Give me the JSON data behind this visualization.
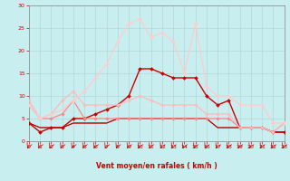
{
  "background_color": "#c8eef0",
  "grid_color": "#b0d0d0",
  "xlabel": "Vent moyen/en rafales ( km/h )",
  "xlim": [
    0,
    23
  ],
  "ylim": [
    0,
    30
  ],
  "xticks": [
    0,
    1,
    2,
    3,
    4,
    5,
    6,
    7,
    8,
    9,
    10,
    11,
    12,
    13,
    14,
    15,
    16,
    17,
    18,
    19,
    20,
    21,
    22,
    23
  ],
  "yticks": [
    0,
    5,
    10,
    15,
    20,
    25,
    30
  ],
  "series": [
    {
      "x": [
        0,
        1,
        2,
        3,
        4,
        5,
        6,
        7,
        8,
        9,
        10,
        11,
        12,
        13,
        14,
        15,
        16,
        17,
        18,
        19,
        20,
        21,
        22,
        23
      ],
      "y": [
        4,
        2,
        3,
        3,
        5,
        5,
        6,
        7,
        8,
        10,
        16,
        16,
        15,
        14,
        14,
        14,
        10,
        8,
        9,
        3,
        3,
        3,
        2,
        2
      ],
      "color": "#cc0000",
      "linewidth": 1.0,
      "marker": "D",
      "markersize": 2.0
    },
    {
      "x": [
        0,
        1,
        2,
        3,
        4,
        5,
        6,
        7,
        8,
        9,
        10,
        11,
        12,
        13,
        14,
        15,
        16,
        17,
        18,
        19,
        20,
        21,
        22,
        23
      ],
      "y": [
        8,
        5,
        5,
        6,
        9,
        5,
        5,
        5,
        5,
        5,
        5,
        5,
        5,
        5,
        5,
        5,
        5,
        5,
        5,
        3,
        3,
        3,
        2,
        4
      ],
      "color": "#ff8888",
      "linewidth": 0.9,
      "marker": "D",
      "markersize": 1.8
    },
    {
      "x": [
        0,
        1,
        2,
        3,
        4,
        5,
        6,
        7,
        8,
        9,
        10,
        11,
        12,
        13,
        14,
        15,
        16,
        17,
        18,
        19,
        20,
        21,
        22,
        23
      ],
      "y": [
        9,
        5,
        6,
        9,
        11,
        8,
        8,
        8,
        8,
        9,
        10,
        9,
        8,
        8,
        8,
        8,
        6,
        6,
        6,
        3,
        3,
        3,
        2,
        4
      ],
      "color": "#ffbbbb",
      "linewidth": 0.9,
      "marker": "D",
      "markersize": 1.8
    },
    {
      "x": [
        0,
        1,
        2,
        3,
        4,
        5,
        6,
        7,
        8,
        9,
        10,
        11,
        12,
        13,
        14,
        15,
        16,
        17,
        18,
        19,
        20,
        21,
        22,
        23
      ],
      "y": [
        4,
        3,
        3,
        3,
        4,
        4,
        4,
        4,
        5,
        5,
        5,
        5,
        5,
        5,
        5,
        5,
        5,
        3,
        3,
        3,
        3,
        3,
        2,
        2
      ],
      "color": "#dd3333",
      "linewidth": 0.8,
      "marker": null,
      "markersize": 0
    },
    {
      "x": [
        0,
        1,
        2,
        3,
        4,
        5,
        6,
        7,
        8,
        9,
        10,
        11,
        12,
        13,
        14,
        15,
        16,
        17,
        18,
        19,
        20,
        21,
        22,
        23
      ],
      "y": [
        4,
        3,
        3,
        3,
        4,
        4,
        4,
        4,
        5,
        5,
        5,
        5,
        5,
        5,
        5,
        5,
        5,
        3,
        3,
        3,
        3,
        3,
        2,
        2
      ],
      "color": "#aa0000",
      "linewidth": 0.7,
      "marker": null,
      "markersize": 0
    },
    {
      "x": [
        0,
        1,
        2,
        3,
        4,
        5,
        6,
        7,
        8,
        9,
        10,
        11,
        12,
        13,
        14,
        15,
        16,
        17,
        18,
        19,
        20,
        21,
        22,
        23
      ],
      "y": [
        8,
        5,
        6,
        7,
        9,
        11,
        14,
        17,
        22,
        26,
        27,
        23,
        24,
        22,
        15,
        26,
        12,
        10,
        10,
        8,
        8,
        8,
        4,
        4
      ],
      "color": "#ffcccc",
      "linewidth": 0.9,
      "marker": "D",
      "markersize": 2.0
    }
  ],
  "axis_fontsize": 5.5,
  "tick_fontsize": 4.5,
  "label_color": "#cc0000",
  "spine_color": "#888888"
}
